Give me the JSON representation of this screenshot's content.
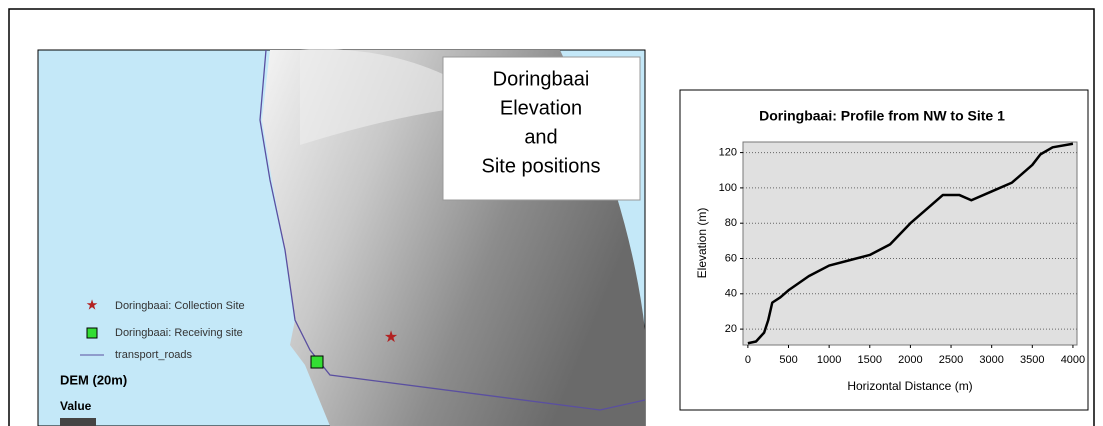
{
  "map": {
    "title_lines": [
      "Doringbaai",
      "Elevation",
      "and",
      "Site positions"
    ],
    "legend": [
      "Doringbaai: Collection Site",
      "Doringbaai: Receiving site",
      "transport_roads"
    ],
    "dem_label": "DEM (20m)",
    "value_label": "Value"
  },
  "chart_data": {
    "type": "line",
    "title": "Doringbaai: Profile from NW to Site 1",
    "x_label": "Horizontal Distance (m)",
    "y_label": "Elevation (m)",
    "x": [
      0,
      100,
      200,
      250,
      300,
      400,
      500,
      750,
      1000,
      1250,
      1500,
      1750,
      2000,
      2250,
      2400,
      2600,
      2750,
      3000,
      3250,
      3500,
      3600,
      3750,
      4000
    ],
    "values": [
      12,
      13,
      18,
      25,
      35,
      38,
      42,
      50,
      56,
      59,
      62,
      68,
      80,
      90,
      96,
      96,
      93,
      98,
      103,
      113,
      119,
      123,
      125
    ],
    "color": "#000000",
    "xlim": [
      -60,
      4050
    ],
    "ylim": [
      11,
      126
    ],
    "xticks": [
      0,
      500,
      1000,
      1500,
      2000,
      2500,
      3000,
      3500,
      4000
    ],
    "yticks": [
      20,
      40,
      60,
      80,
      100,
      120
    ],
    "grid": true
  }
}
